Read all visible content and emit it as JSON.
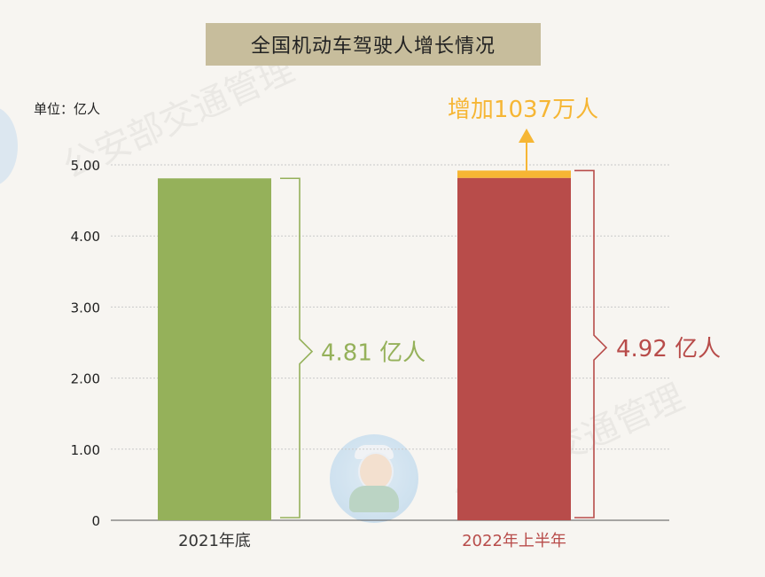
{
  "title": "全国机动车驾驶人增长情况",
  "unit": "单位：亿人",
  "watermark": "公安部交通管理",
  "colors": {
    "bar_2021": "#95b15a",
    "bar_2022": "#b84c4a",
    "increase": "#f6b634",
    "grid": "#c9c9c9"
  },
  "chart_data": {
    "type": "bar",
    "categories": [
      "2021年底",
      "2022年上半年"
    ],
    "values": [
      4.81,
      4.92
    ],
    "stacked_increase": {
      "category": "2022年上半年",
      "value": 0.1037,
      "label": "增加1037万人"
    },
    "value_labels": [
      "4.81 亿人",
      "4.92 亿人"
    ],
    "y_ticks": [
      "0",
      "1.00",
      "2.00",
      "3.00",
      "4.00",
      "5.00"
    ],
    "ylim": [
      0,
      5
    ],
    "grid": true
  }
}
